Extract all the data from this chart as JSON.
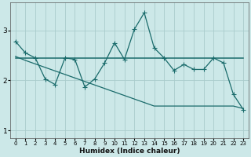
{
  "title": "",
  "xlabel": "Humidex (Indice chaleur)",
  "bg_color": "#cce8e8",
  "grid_color": "#aacccc",
  "line_color": "#1a6b6b",
  "x": [
    0,
    1,
    2,
    3,
    4,
    5,
    6,
    7,
    8,
    9,
    10,
    11,
    12,
    13,
    14,
    15,
    16,
    17,
    18,
    19,
    20,
    21,
    22,
    23
  ],
  "y_jagged": [
    2.78,
    2.55,
    2.45,
    2.03,
    1.92,
    2.45,
    2.42,
    1.87,
    2.03,
    2.35,
    2.75,
    2.42,
    3.02,
    3.35,
    2.65,
    2.45,
    2.2,
    2.32,
    2.22,
    2.22,
    2.45,
    2.35,
    1.72,
    1.42
  ],
  "y_flat": [
    2.45,
    2.45,
    2.45,
    2.45,
    2.45,
    2.45,
    2.45,
    2.45,
    2.45,
    2.45,
    2.45,
    2.45,
    2.45,
    2.45,
    2.45,
    2.45,
    2.45,
    2.45,
    2.45,
    2.45,
    2.45,
    2.45,
    2.45,
    2.45
  ],
  "y_slope": [
    2.48,
    2.4,
    2.33,
    2.26,
    2.19,
    2.12,
    2.05,
    1.98,
    1.91,
    1.84,
    1.77,
    1.7,
    1.63,
    1.56,
    1.49,
    1.49,
    1.49,
    1.49,
    1.49,
    1.49,
    1.49,
    1.49,
    1.49,
    1.44
  ],
  "ylim": [
    0.85,
    3.55
  ],
  "xlim": [
    -0.5,
    23.5
  ],
  "yticks": [
    1,
    2,
    3
  ],
  "xtick_labels": [
    "0",
    "1",
    "2",
    "3",
    "4",
    "5",
    "6",
    "7",
    "8",
    "9",
    "10",
    "11",
    "12",
    "13",
    "14",
    "15",
    "16",
    "17",
    "18",
    "19",
    "20",
    "21",
    "22",
    "23"
  ],
  "markersize": 2.5
}
